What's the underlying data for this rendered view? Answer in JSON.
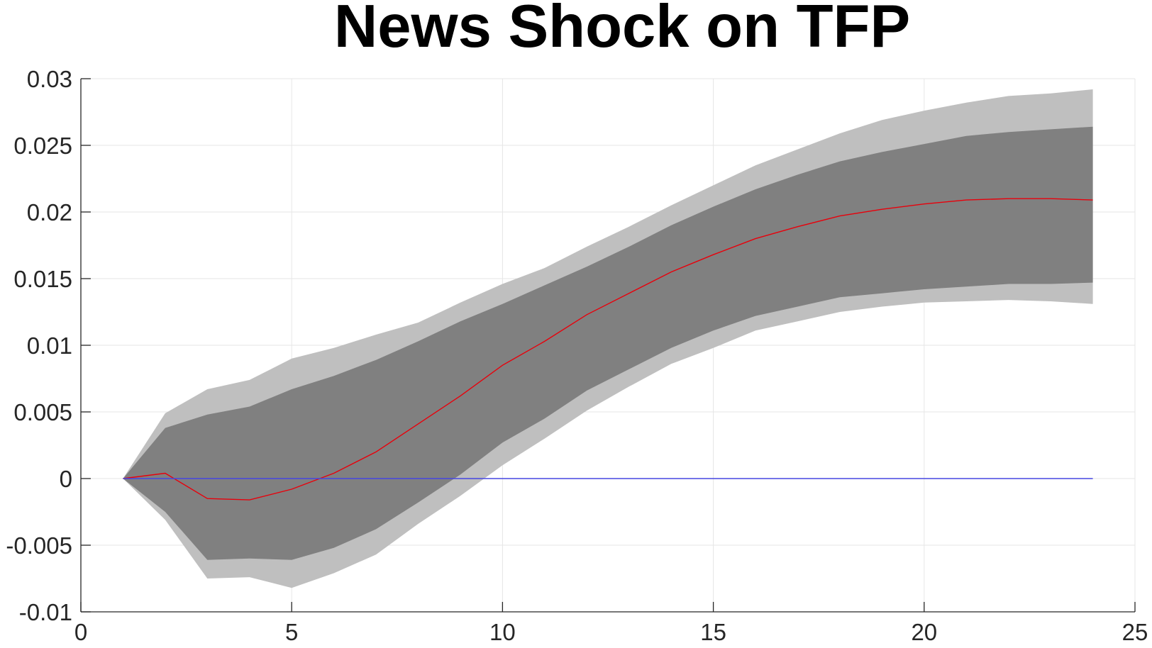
{
  "chart_data": {
    "type": "area",
    "title": "News Shock on TFP",
    "xlabel": "",
    "ylabel": "",
    "xlim": [
      0,
      25
    ],
    "ylim": [
      -0.01,
      0.03
    ],
    "grid": true,
    "x_ticks": [
      0,
      5,
      10,
      15,
      20,
      25
    ],
    "x_tick_labels": [
      "0",
      "5",
      "10",
      "15",
      "20",
      "25"
    ],
    "y_ticks": [
      -0.01,
      -0.005,
      0,
      0.005,
      0.01,
      0.015,
      0.02,
      0.025,
      0.03
    ],
    "y_tick_labels": [
      "-0.01",
      "-0.005",
      "0",
      "0.005",
      "0.01",
      "0.015",
      "0.02",
      "0.025",
      "0.03"
    ],
    "x": [
      1,
      2,
      3,
      4,
      5,
      6,
      7,
      8,
      9,
      10,
      11,
      12,
      13,
      14,
      15,
      16,
      17,
      18,
      19,
      20,
      21,
      22,
      23,
      24
    ],
    "series": [
      {
        "role": "outer_band",
        "color": "#bfbfbf",
        "upper": [
          0,
          0.0049,
          0.0067,
          0.0074,
          0.009,
          0.0098,
          0.0108,
          0.0117,
          0.0132,
          0.0146,
          0.0158,
          0.0174,
          0.0189,
          0.0205,
          0.022,
          0.0235,
          0.0247,
          0.0259,
          0.0269,
          0.0276,
          0.0282,
          0.0287,
          0.0289,
          0.0292
        ],
        "lower": [
          0,
          -0.0031,
          -0.0075,
          -0.0074,
          -0.0082,
          -0.0071,
          -0.0057,
          -0.0034,
          -0.0013,
          0.001,
          0.003,
          0.0051,
          0.0069,
          0.0086,
          0.0098,
          0.0111,
          0.0118,
          0.0125,
          0.0129,
          0.0132,
          0.0133,
          0.0134,
          0.0133,
          0.0131
        ]
      },
      {
        "role": "inner_band",
        "color": "#808080",
        "upper": [
          0,
          0.0038,
          0.0048,
          0.0054,
          0.0067,
          0.0077,
          0.0089,
          0.0103,
          0.0118,
          0.0131,
          0.0145,
          0.0159,
          0.0174,
          0.019,
          0.0204,
          0.0217,
          0.0228,
          0.0238,
          0.0245,
          0.0251,
          0.0257,
          0.026,
          0.0262,
          0.0264
        ],
        "lower": [
          0,
          -0.0025,
          -0.0061,
          -0.006,
          -0.0061,
          -0.0052,
          -0.0038,
          -0.0018,
          0.0003,
          0.0027,
          0.0045,
          0.0066,
          0.0082,
          0.0098,
          0.0111,
          0.0122,
          0.0129,
          0.0136,
          0.0139,
          0.0142,
          0.0144,
          0.0146,
          0.0146,
          0.0147
        ]
      },
      {
        "role": "median",
        "color": "#e8000b",
        "values": [
          0,
          0.0004,
          -0.0015,
          -0.0016,
          -0.0008,
          0.0004,
          0.002,
          0.0041,
          0.0062,
          0.0085,
          0.0103,
          0.0123,
          0.0139,
          0.0155,
          0.0168,
          0.018,
          0.0189,
          0.0197,
          0.0202,
          0.0206,
          0.0209,
          0.021,
          0.021,
          0.0209
        ]
      },
      {
        "role": "zero_line",
        "color": "#4646e0",
        "values": [
          0,
          0,
          0,
          0,
          0,
          0,
          0,
          0,
          0,
          0,
          0,
          0,
          0,
          0,
          0,
          0,
          0,
          0,
          0,
          0,
          0,
          0,
          0,
          0
        ]
      }
    ]
  }
}
